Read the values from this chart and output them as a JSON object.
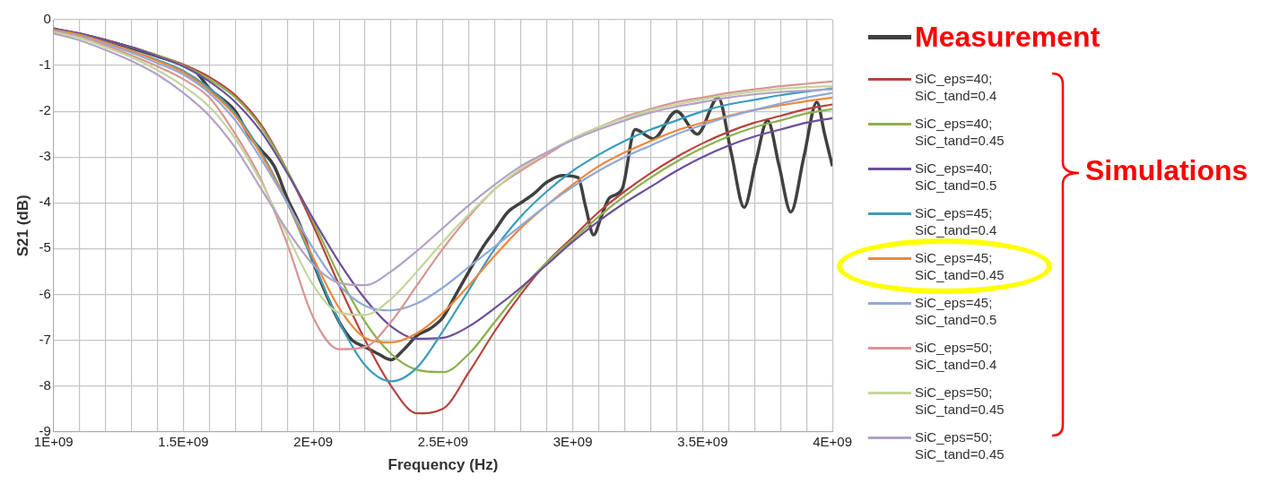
{
  "chart_data": {
    "type": "line",
    "xlabel": "Frequency (Hz)",
    "ylabel": "S21 (dB)",
    "x": [
      1000000000.0,
      1100000000.0,
      1200000000.0,
      1300000000.0,
      1400000000.0,
      1500000000.0,
      1600000000.0,
      1700000000.0,
      1800000000.0,
      1900000000.0,
      2000000000.0,
      2100000000.0,
      2200000000.0,
      2300000000.0,
      2400000000.0,
      2500000000.0,
      2600000000.0,
      2700000000.0,
      2800000000.0,
      2900000000.0,
      3000000000.0,
      3100000000.0,
      3200000000.0,
      3300000000.0,
      3400000000.0,
      3500000000.0,
      3600000000.0,
      3700000000.0,
      3800000000.0,
      3900000000.0,
      4000000000.0
    ],
    "series": [
      {
        "name": "Measurement",
        "color": "#404040",
        "x": [
          1000000000.0,
          1200000000.0,
          1400000000.0,
          1500000000.0,
          1550000000.0,
          1600000000.0,
          1700000000.0,
          1750000000.0,
          1800000000.0,
          1850000000.0,
          1900000000.0,
          1950000000.0,
          2000000000.0,
          2050000000.0,
          2100000000.0,
          2150000000.0,
          2200000000.0,
          2250000000.0,
          2300000000.0,
          2350000000.0,
          2400000000.0,
          2450000000.0,
          2500000000.0,
          2550000000.0,
          2600000000.0,
          2650000000.0,
          2700000000.0,
          2750000000.0,
          2800000000.0,
          2850000000.0,
          2900000000.0,
          2960000000.0,
          3020000000.0,
          3050000000.0,
          3080000000.0,
          3110000000.0,
          3140000000.0,
          3190000000.0,
          3240000000.0,
          3310000000.0,
          3400000000.0,
          3480000000.0,
          3560000000.0,
          3610000000.0,
          3660000000.0,
          3705000000.0,
          3750000000.0,
          3795000000.0,
          3840000000.0,
          3890000000.0,
          3940000000.0,
          3970000000.0,
          4000000000.0
        ],
        "values": [
          -0.2,
          -0.45,
          -0.8,
          -1.0,
          -1.15,
          -1.5,
          -2.0,
          -2.5,
          -2.85,
          -3.2,
          -3.9,
          -4.5,
          -5.3,
          -6.0,
          -6.6,
          -7.0,
          -7.15,
          -7.3,
          -7.43,
          -7.2,
          -6.9,
          -6.75,
          -6.5,
          -6.0,
          -5.5,
          -5.0,
          -4.6,
          -4.2,
          -4.0,
          -3.8,
          -3.55,
          -3.4,
          -3.45,
          -4.1,
          -4.7,
          -4.3,
          -3.9,
          -3.7,
          -2.4,
          -2.6,
          -2.0,
          -2.5,
          -1.7,
          -2.9,
          -4.1,
          -3.1,
          -2.2,
          -3.2,
          -4.2,
          -3.0,
          -1.8,
          -2.5,
          -3.2
        ]
      },
      {
        "name": "SiC_eps=40; SiC_tand=0.4",
        "color": "#b5443f",
        "values": [
          -0.2,
          -0.3,
          -0.45,
          -0.6,
          -0.78,
          -0.98,
          -1.25,
          -1.65,
          -2.3,
          -3.3,
          -4.5,
          -5.8,
          -7.0,
          -8.0,
          -8.6,
          -8.5,
          -7.7,
          -6.8,
          -6.0,
          -5.3,
          -4.75,
          -4.2,
          -3.75,
          -3.35,
          -3.0,
          -2.7,
          -2.45,
          -2.25,
          -2.1,
          -1.95,
          -1.85
        ]
      },
      {
        "name": "SiC_eps=40; SiC_tand=0.45",
        "color": "#8cb04a",
        "values": [
          -0.2,
          -0.3,
          -0.45,
          -0.6,
          -0.78,
          -1.0,
          -1.3,
          -1.7,
          -2.35,
          -3.3,
          -4.4,
          -5.6,
          -6.6,
          -7.3,
          -7.65,
          -7.7,
          -7.3,
          -6.6,
          -5.9,
          -5.3,
          -4.8,
          -4.3,
          -3.85,
          -3.45,
          -3.1,
          -2.8,
          -2.55,
          -2.35,
          -2.2,
          -2.05,
          -1.95
        ]
      },
      {
        "name": "SiC_eps=40; SiC_tand=0.5",
        "color": "#6d4f9a",
        "values": [
          -0.2,
          -0.3,
          -0.45,
          -0.6,
          -0.8,
          -1.02,
          -1.35,
          -1.8,
          -2.45,
          -3.35,
          -4.35,
          -5.3,
          -6.1,
          -6.7,
          -6.97,
          -6.95,
          -6.7,
          -6.3,
          -5.85,
          -5.35,
          -4.85,
          -4.4,
          -4.0,
          -3.65,
          -3.3,
          -3.0,
          -2.75,
          -2.55,
          -2.4,
          -2.25,
          -2.15
        ]
      },
      {
        "name": "SiC_eps=45; SiC_tand=0.4",
        "color": "#3a9dbb",
        "values": [
          -0.22,
          -0.33,
          -0.5,
          -0.68,
          -0.88,
          -1.12,
          -1.5,
          -2.05,
          -2.9,
          -4.0,
          -5.3,
          -6.6,
          -7.55,
          -7.9,
          -7.6,
          -6.8,
          -5.9,
          -5.0,
          -4.3,
          -3.75,
          -3.3,
          -2.95,
          -2.65,
          -2.4,
          -2.2,
          -2.0,
          -1.85,
          -1.75,
          -1.65,
          -1.57,
          -1.5
        ]
      },
      {
        "name": "SiC_eps=45; SiC_tand=0.45",
        "color": "#f0883a",
        "values": [
          -0.22,
          -0.33,
          -0.5,
          -0.68,
          -0.9,
          -1.15,
          -1.55,
          -2.1,
          -2.95,
          -4.0,
          -5.2,
          -6.3,
          -6.95,
          -7.05,
          -6.85,
          -6.4,
          -5.8,
          -5.15,
          -4.55,
          -4.05,
          -3.6,
          -3.2,
          -2.9,
          -2.65,
          -2.42,
          -2.25,
          -2.1,
          -1.97,
          -1.87,
          -1.78,
          -1.7
        ]
      },
      {
        "name": "SiC_eps=45; SiC_tand=0.5",
        "color": "#8fa9d8",
        "values": [
          -0.24,
          -0.36,
          -0.53,
          -0.72,
          -0.95,
          -1.2,
          -1.6,
          -2.2,
          -3.05,
          -4.0,
          -5.0,
          -5.8,
          -6.25,
          -6.35,
          -6.2,
          -5.85,
          -5.4,
          -4.95,
          -4.5,
          -4.05,
          -3.65,
          -3.3,
          -3.0,
          -2.75,
          -2.5,
          -2.3,
          -2.12,
          -1.97,
          -1.83,
          -1.7,
          -1.6
        ]
      },
      {
        "name": "SiC_eps=50; SiC_tand=0.4",
        "color": "#d99594",
        "values": [
          -0.25,
          -0.38,
          -0.56,
          -0.78,
          -1.02,
          -1.3,
          -1.7,
          -2.5,
          -3.5,
          -4.9,
          -6.5,
          -7.2,
          -7.15,
          -6.6,
          -5.8,
          -5.0,
          -4.3,
          -3.7,
          -3.3,
          -2.95,
          -2.6,
          -2.35,
          -2.12,
          -1.95,
          -1.8,
          -1.7,
          -1.6,
          -1.52,
          -1.45,
          -1.4,
          -1.35
        ]
      },
      {
        "name": "SiC_eps=50; SiC_tand=0.45",
        "color": "#c3d69b",
        "values": [
          -0.27,
          -0.4,
          -0.6,
          -0.82,
          -1.1,
          -1.45,
          -1.9,
          -2.6,
          -3.55,
          -4.7,
          -5.8,
          -6.4,
          -6.45,
          -6.1,
          -5.5,
          -4.85,
          -4.25,
          -3.7,
          -3.25,
          -2.9,
          -2.6,
          -2.35,
          -2.15,
          -1.98,
          -1.85,
          -1.74,
          -1.65,
          -1.57,
          -1.51,
          -1.47,
          -1.45
        ]
      },
      {
        "name": "SiC_eps=50; SiC_tand=0.45",
        "color": "#b3a2c7",
        "values": [
          -0.3,
          -0.45,
          -0.66,
          -0.9,
          -1.2,
          -1.6,
          -2.1,
          -2.8,
          -3.7,
          -4.6,
          -5.35,
          -5.75,
          -5.8,
          -5.5,
          -5.05,
          -4.55,
          -4.05,
          -3.6,
          -3.2,
          -2.9,
          -2.63,
          -2.4,
          -2.2,
          -2.03,
          -1.9,
          -1.8,
          -1.7,
          -1.63,
          -1.58,
          -1.55,
          -1.52
        ]
      }
    ],
    "xlim": [
      1000000000.0,
      4000000000.0
    ],
    "xticks": [
      {
        "value": 1000000000.0,
        "label": "1E+09"
      },
      {
        "value": 1100000000.0,
        "label": null
      },
      {
        "value": 1200000000.0,
        "label": null
      },
      {
        "value": 1300000000.0,
        "label": null
      },
      {
        "value": 1400000000.0,
        "label": null
      },
      {
        "value": 1500000000.0,
        "label": "1.5E+09"
      },
      {
        "value": 1600000000.0,
        "label": null
      },
      {
        "value": 1700000000.0,
        "label": null
      },
      {
        "value": 1800000000.0,
        "label": null
      },
      {
        "value": 1900000000.0,
        "label": null
      },
      {
        "value": 2000000000.0,
        "label": "2E+09"
      },
      {
        "value": 2100000000.0,
        "label": null
      },
      {
        "value": 2200000000.0,
        "label": null
      },
      {
        "value": 2300000000.0,
        "label": null
      },
      {
        "value": 2400000000.0,
        "label": null
      },
      {
        "value": 2500000000.0,
        "label": "2.5E+09"
      },
      {
        "value": 2600000000.0,
        "label": null
      },
      {
        "value": 2700000000.0,
        "label": null
      },
      {
        "value": 2800000000.0,
        "label": null
      },
      {
        "value": 2900000000.0,
        "label": null
      },
      {
        "value": 3000000000.0,
        "label": "3E+09"
      },
      {
        "value": 3100000000.0,
        "label": null
      },
      {
        "value": 3200000000.0,
        "label": null
      },
      {
        "value": 3300000000.0,
        "label": null
      },
      {
        "value": 3400000000.0,
        "label": null
      },
      {
        "value": 3500000000.0,
        "label": "3.5E+09"
      },
      {
        "value": 3600000000.0,
        "label": null
      },
      {
        "value": 3700000000.0,
        "label": null
      },
      {
        "value": 3800000000.0,
        "label": null
      },
      {
        "value": 3900000000.0,
        "label": null
      },
      {
        "value": 4000000000.0,
        "label": "4E+09"
      }
    ],
    "ylim": [
      -9,
      0
    ],
    "yticks": [
      -9,
      -8,
      -7,
      -6,
      -5,
      -4,
      -3,
      -2,
      -1,
      0
    ],
    "grid": true,
    "legend": "right",
    "marker": "none",
    "line_style": "solid",
    "annotations": [
      "Simulations"
    ]
  }
}
